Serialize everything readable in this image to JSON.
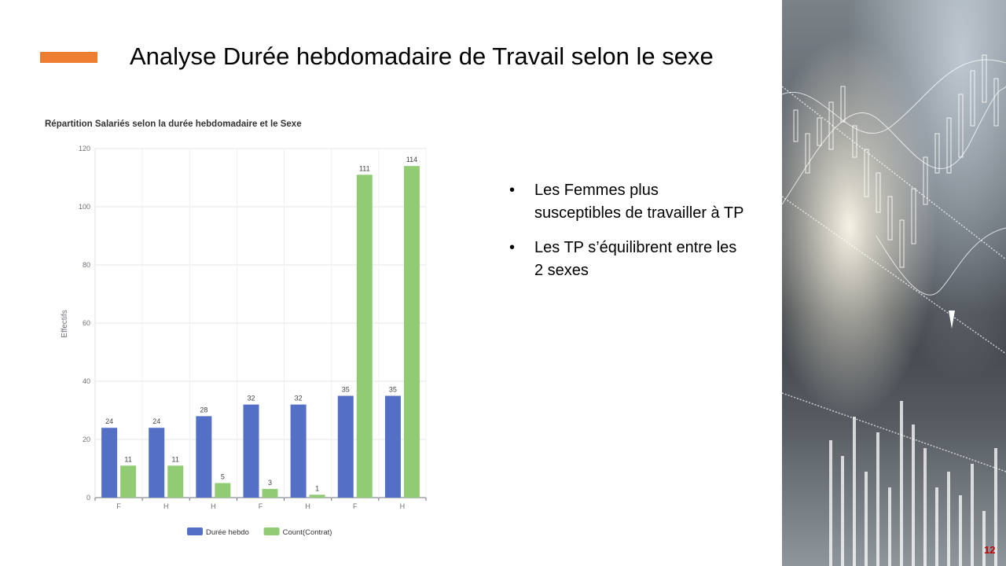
{
  "slide": {
    "title": "Analyse Durée hebdomadaire de Travail selon le sexe",
    "accent_color": "#ED7D31",
    "page_number": "12",
    "bullets": [
      "Les Femmes plus susceptibles de travailler à TP",
      "Les TP s’équilibrent entre les 2 sexes"
    ]
  },
  "chart_data": {
    "type": "bar",
    "title": "Répartition Salariés selon la durée hebdomadaire et le Sexe",
    "xlabel": "",
    "ylabel": "Effectifs",
    "categories": [
      "F",
      "H",
      "H",
      "F",
      "H",
      "F",
      "H"
    ],
    "series": [
      {
        "name": "Durée hebdo",
        "color": "#5470C6",
        "values": [
          24,
          24,
          28,
          32,
          32,
          35,
          35
        ]
      },
      {
        "name": "Count(Contrat)",
        "color": "#91CC75",
        "values": [
          11,
          11,
          5,
          3,
          1,
          111,
          114
        ]
      }
    ],
    "ylim": [
      0,
      120
    ],
    "yticks": [
      0,
      20,
      40,
      60,
      80,
      100,
      120
    ],
    "grid": true,
    "legend_position": "bottom"
  }
}
